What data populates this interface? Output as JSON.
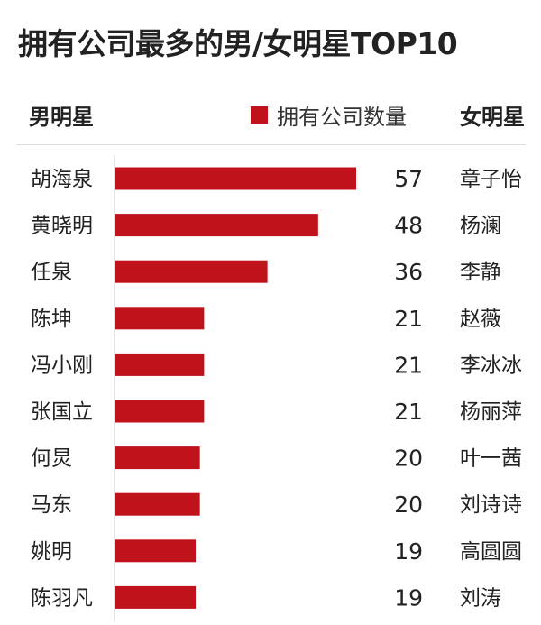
{
  "chart_data": {
    "type": "bar",
    "orientation": "horizontal",
    "title": "拥有公司最多的男/女明星TOP10",
    "category_header": "男明星",
    "secondary_header": "女明星",
    "legend": [
      {
        "label": "拥有公司数量",
        "color": "#c0121a"
      }
    ],
    "categories": [
      "胡海泉",
      "黄晓明",
      "任泉",
      "陈坤",
      "冯小刚",
      "张国立",
      "何炅",
      "马东",
      "姚明",
      "陈羽凡"
    ],
    "secondary_labels": [
      "章子怡",
      "杨澜",
      "李静",
      "赵薇",
      "李冰冰",
      "杨丽萍",
      "叶一茜",
      "刘诗诗",
      "高圆圆",
      "刘涛"
    ],
    "series": [
      {
        "name": "拥有公司数量",
        "values": [
          57,
          48,
          36,
          21,
          21,
          21,
          20,
          20,
          19,
          19
        ]
      }
    ],
    "xlim": [
      0,
      57
    ],
    "grid": false,
    "legend_position": "top"
  },
  "colors": {
    "bar": "#c0121a",
    "text": "#222222",
    "axis": "#cccccc"
  }
}
